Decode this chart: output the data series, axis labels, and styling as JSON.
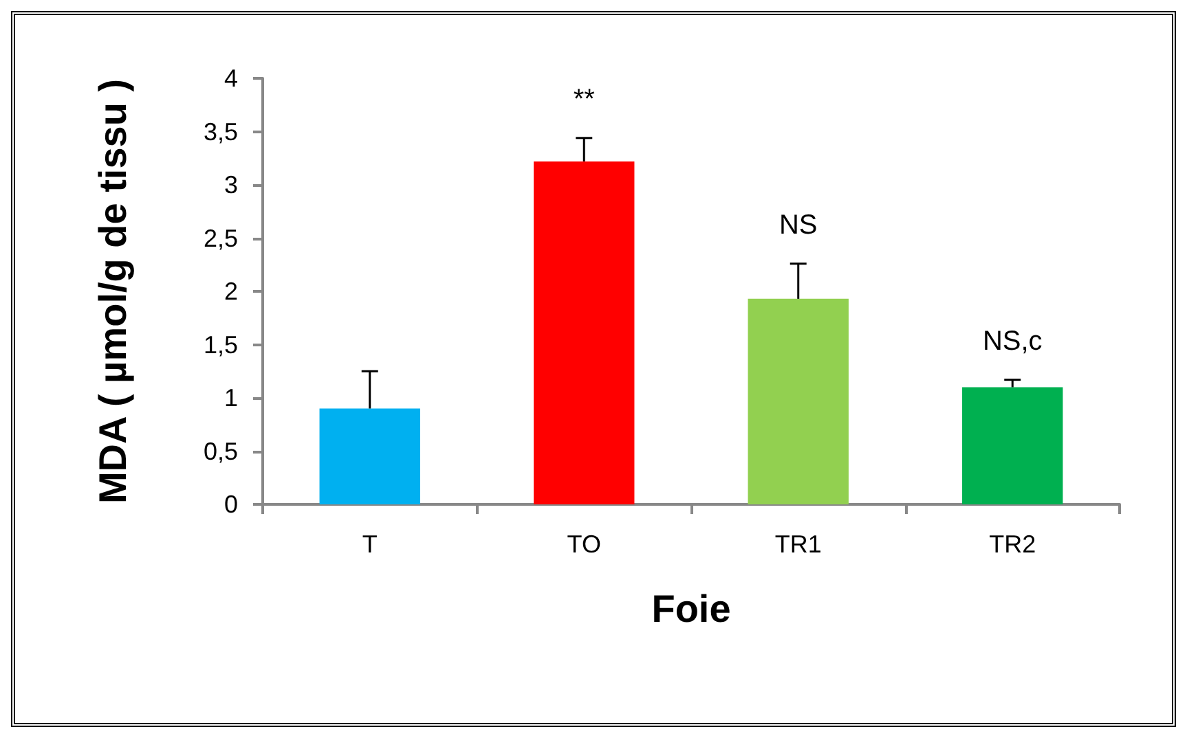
{
  "chart_data": {
    "type": "bar",
    "xlabel": "Foie",
    "ylabel": "MDA ( µmol/g de tissu )",
    "categories": [
      "T",
      "TO",
      "TR1",
      "TR2"
    ],
    "values": [
      0.9,
      3.22,
      1.93,
      1.1
    ],
    "colors": [
      "#00b0f0",
      "#ff0000",
      "#92d050",
      "#00b050"
    ],
    "errors": [
      [
        0.9,
        1.25
      ],
      [
        3.22,
        3.44
      ],
      [
        1.93,
        2.26
      ],
      [
        1.1,
        1.17
      ]
    ],
    "value_labels": [
      null,
      "**",
      "NS",
      "NS,c"
    ],
    "ylim": [
      0,
      4
    ],
    "yticks": [
      0,
      {
        "value": 0.5,
        "label": "0,5"
      },
      1,
      {
        "value": 1.5,
        "label": "1,5"
      },
      2,
      {
        "value": 2.5,
        "label": "2,5"
      },
      3,
      {
        "value": 3.5,
        "label": "3,5"
      },
      4
    ],
    "grid": false
  }
}
